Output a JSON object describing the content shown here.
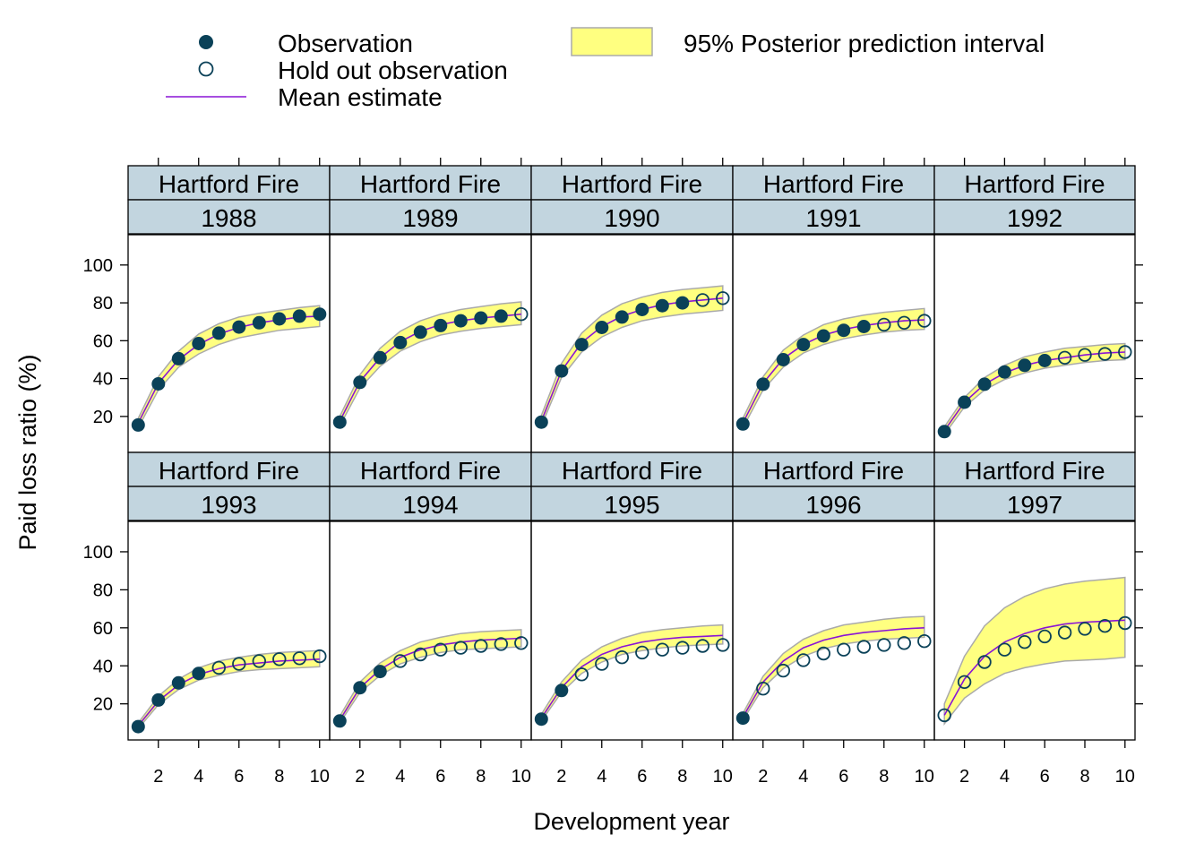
{
  "chart_data": {
    "type": "line",
    "xlabel": "Development year",
    "ylabel": "Paid loss ratio (%)",
    "xlim": [
      0.5,
      10.5
    ],
    "ylim": [
      1,
      116
    ],
    "x_ticks": [
      2,
      4,
      6,
      8,
      10
    ],
    "y_ticks": [
      20,
      40,
      60,
      80,
      100
    ],
    "layout": {
      "columns": 5,
      "rows": 2
    },
    "legend": {
      "position": "top",
      "observation": "Observation",
      "holdout": "Hold out observation",
      "mean": "Mean estimate",
      "interval": "95% Posterior prediction interval"
    },
    "colors": {
      "observation": "#0a4158",
      "mean": "#8a14d6",
      "interval_fill": "#ffff80",
      "interval_edge": "#aaaaaa",
      "strip": "#c2d5df"
    },
    "x": [
      1,
      2,
      3,
      4,
      5,
      6,
      7,
      8,
      9,
      10
    ],
    "panels": [
      {
        "company": "Hartford Fire",
        "year": "1988",
        "n_obs": 10,
        "obs": [
          15.5,
          37.2,
          50.5,
          58.5,
          64.0,
          67.2,
          69.5,
          71.5,
          73.0,
          74.0
        ],
        "mean": [
          16.5,
          37.5,
          50.0,
          58.0,
          63.5,
          67.0,
          69.5,
          71.0,
          72.5,
          73.0
        ],
        "lower": [
          14.0,
          34.0,
          46.0,
          53.0,
          58.0,
          61.5,
          63.5,
          65.5,
          66.5,
          67.5
        ],
        "upper": [
          19.0,
          41.0,
          54.5,
          63.5,
          69.0,
          72.5,
          74.5,
          76.0,
          77.5,
          78.5
        ]
      },
      {
        "company": "Hartford Fire",
        "year": "1989",
        "n_obs": 9,
        "obs": [
          17.0,
          38.0,
          51.0,
          59.0,
          64.5,
          68.0,
          70.5,
          72.0,
          73.0,
          74.0
        ],
        "mean": [
          17.5,
          38.5,
          51.0,
          59.5,
          65.0,
          68.5,
          70.5,
          72.0,
          73.0,
          74.0
        ],
        "lower": [
          15.0,
          35.0,
          46.5,
          54.5,
          59.5,
          63.0,
          65.0,
          66.5,
          67.5,
          68.5
        ],
        "upper": [
          20.0,
          42.0,
          56.0,
          65.0,
          70.5,
          74.0,
          76.5,
          78.0,
          79.5,
          80.5
        ]
      },
      {
        "company": "Hartford Fire",
        "year": "1990",
        "n_obs": 8,
        "obs": [
          17.0,
          44.0,
          58.0,
          67.0,
          72.5,
          76.5,
          78.5,
          80.0,
          81.5,
          82.5
        ],
        "mean": [
          17.5,
          44.0,
          59.0,
          67.5,
          73.0,
          76.5,
          79.0,
          80.5,
          81.5,
          82.5
        ],
        "lower": [
          15.0,
          40.5,
          54.0,
          62.0,
          67.0,
          70.5,
          72.5,
          74.0,
          75.0,
          76.0
        ],
        "upper": [
          20.5,
          48.0,
          64.0,
          73.5,
          79.5,
          83.0,
          85.5,
          87.0,
          88.0,
          89.0
        ]
      },
      {
        "company": "Hartford Fire",
        "year": "1991",
        "n_obs": 7,
        "obs": [
          16.0,
          37.0,
          50.0,
          58.0,
          62.5,
          65.5,
          67.5,
          68.5,
          69.5,
          70.5
        ],
        "mean": [
          16.5,
          37.5,
          50.5,
          58.0,
          63.0,
          66.0,
          68.0,
          69.5,
          70.5,
          71.0
        ],
        "lower": [
          14.0,
          34.0,
          46.0,
          53.5,
          58.0,
          61.0,
          63.0,
          64.5,
          65.5,
          66.0
        ],
        "upper": [
          19.0,
          41.0,
          55.0,
          63.0,
          68.5,
          71.5,
          73.5,
          75.0,
          76.0,
          77.0
        ]
      },
      {
        "company": "Hartford Fire",
        "year": "1992",
        "n_obs": 6,
        "obs": [
          12.0,
          27.5,
          37.0,
          43.5,
          47.0,
          49.5,
          51.0,
          52.5,
          53.0,
          54.0
        ],
        "mean": [
          12.5,
          27.5,
          37.0,
          43.0,
          47.0,
          49.5,
          51.0,
          52.5,
          53.5,
          54.0
        ],
        "lower": [
          10.5,
          25.0,
          34.0,
          39.5,
          43.0,
          45.5,
          47.0,
          48.5,
          49.5,
          50.0
        ],
        "upper": [
          14.5,
          30.0,
          40.5,
          47.0,
          51.5,
          54.0,
          56.0,
          57.0,
          58.0,
          58.5
        ]
      },
      {
        "company": "Hartford Fire",
        "year": "1993",
        "n_obs": 4,
        "obs": [
          8.0,
          22.0,
          31.0,
          36.0,
          39.0,
          41.0,
          42.5,
          43.5,
          44.0,
          45.0
        ],
        "mean": [
          8.5,
          21.5,
          30.0,
          35.5,
          38.5,
          40.5,
          41.5,
          42.5,
          43.0,
          43.5
        ],
        "lower": [
          7.0,
          19.5,
          27.5,
          32.5,
          35.0,
          37.0,
          38.0,
          38.5,
          39.0,
          39.5
        ],
        "upper": [
          10.0,
          24.0,
          33.0,
          39.0,
          42.5,
          44.5,
          46.0,
          47.0,
          47.5,
          48.0
        ]
      },
      {
        "company": "Hartford Fire",
        "year": "1994",
        "n_obs": 3,
        "obs": [
          11.0,
          28.5,
          37.0,
          42.5,
          46.0,
          48.5,
          49.5,
          50.5,
          51.5,
          52.0
        ],
        "mean": [
          11.5,
          28.5,
          38.0,
          44.5,
          48.5,
          51.0,
          52.5,
          53.5,
          54.0,
          54.5
        ],
        "lower": [
          10.0,
          26.0,
          35.0,
          41.0,
          44.5,
          47.0,
          48.5,
          49.0,
          49.5,
          50.0
        ],
        "upper": [
          13.5,
          31.5,
          41.5,
          48.0,
          52.5,
          55.0,
          57.0,
          58.0,
          58.5,
          59.0
        ]
      },
      {
        "company": "Hartford Fire",
        "year": "1995",
        "n_obs": 2,
        "obs": [
          12.0,
          27.0,
          35.5,
          41.0,
          44.5,
          47.0,
          48.5,
          49.5,
          50.5,
          51.0
        ],
        "mean": [
          12.5,
          28.5,
          39.5,
          46.0,
          50.0,
          52.5,
          54.0,
          55.0,
          55.5,
          56.0
        ],
        "lower": [
          11.0,
          26.0,
          36.0,
          42.0,
          46.0,
          48.0,
          49.5,
          50.5,
          51.0,
          51.5
        ],
        "upper": [
          14.5,
          31.5,
          43.0,
          50.0,
          54.5,
          57.5,
          59.0,
          60.0,
          61.0,
          61.5
        ]
      },
      {
        "company": "Hartford Fire",
        "year": "1996",
        "n_obs": 1,
        "obs": [
          12.5,
          28.0,
          37.5,
          43.0,
          46.5,
          48.5,
          50.0,
          51.0,
          52.0,
          53.0
        ],
        "mean": [
          13.0,
          31.5,
          42.5,
          49.5,
          53.5,
          56.0,
          57.5,
          58.5,
          59.5,
          60.0
        ],
        "lower": [
          11.5,
          28.5,
          38.5,
          45.0,
          49.0,
          51.5,
          53.0,
          54.0,
          54.5,
          55.0
        ],
        "upper": [
          15.0,
          34.5,
          46.5,
          54.0,
          58.5,
          61.5,
          63.0,
          64.5,
          65.5,
          66.0
        ]
      },
      {
        "company": "Hartford Fire",
        "year": "1997",
        "n_obs": 0,
        "obs": [
          14.0,
          31.5,
          42.0,
          48.5,
          52.5,
          55.5,
          57.5,
          59.5,
          61.0,
          62.5
        ],
        "mean": [
          14.0,
          33.0,
          45.0,
          52.5,
          57.0,
          60.0,
          62.0,
          63.0,
          63.5,
          64.0
        ],
        "lower": [
          9.5,
          23.0,
          30.5,
          36.0,
          39.0,
          41.0,
          42.5,
          43.0,
          43.5,
          44.5
        ],
        "upper": [
          20.0,
          45.0,
          61.0,
          70.5,
          76.5,
          80.5,
          83.0,
          84.5,
          85.5,
          86.5
        ]
      }
    ]
  }
}
